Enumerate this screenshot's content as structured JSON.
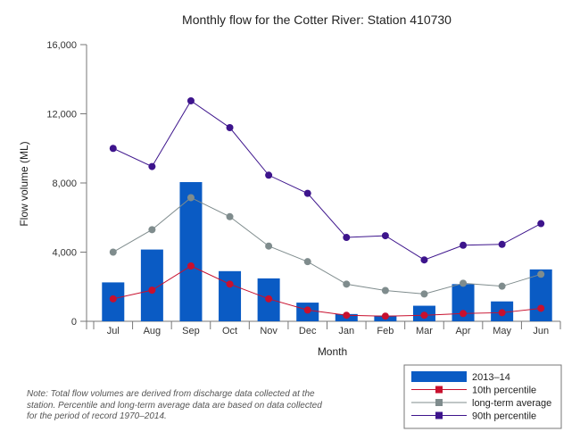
{
  "chart_data": {
    "type": "bar",
    "title": "Monthly flow for the Cotter River: Station 410730",
    "xlabel": "Month",
    "ylabel": "Flow volume (ML)",
    "ylim": [
      0,
      16000
    ],
    "yticks": [
      0,
      4000,
      8000,
      12000,
      16000
    ],
    "ytick_labels": [
      "0",
      "4,000",
      "8,000",
      "12,000",
      "16,000"
    ],
    "grid": false,
    "legend_position": "bottom-right",
    "categories": [
      "Jul",
      "Aug",
      "Sep",
      "Oct",
      "Nov",
      "Dec",
      "Jan",
      "Feb",
      "Mar",
      "Apr",
      "May",
      "Jun"
    ],
    "series": [
      {
        "name": "2013–14",
        "type": "bar",
        "color": "#0a5bc4",
        "values": [
          2250,
          4150,
          8050,
          2900,
          2480,
          1080,
          420,
          330,
          900,
          2150,
          1150,
          3000
        ]
      },
      {
        "name": "10th percentile",
        "type": "line",
        "color": "#c8102e",
        "values": [
          1300,
          1800,
          3200,
          2150,
          1300,
          650,
          350,
          300,
          350,
          450,
          500,
          750
        ]
      },
      {
        "name": "long-term average",
        "type": "line",
        "color": "#7f8c8d",
        "values": [
          4000,
          5300,
          7150,
          6050,
          4350,
          3450,
          2150,
          1780,
          1580,
          2200,
          2030,
          2720
        ]
      },
      {
        "name": "90th percentile",
        "type": "line",
        "color": "#3d148c",
        "values": [
          10000,
          8950,
          12750,
          11200,
          8450,
          7400,
          4850,
          4950,
          3550,
          4400,
          4450,
          5650
        ]
      }
    ]
  },
  "note": "Note: Total flow volumes are derived from discharge data collected at the station. Percentile and long-term average data are based on data collected for the period of record 1970–2014."
}
